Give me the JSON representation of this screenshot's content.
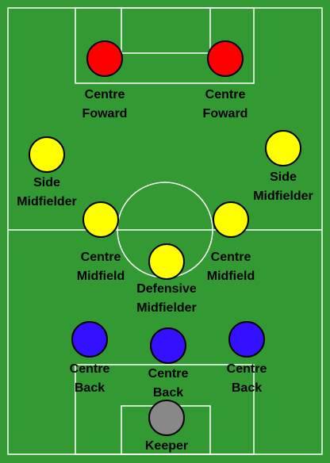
{
  "pitch": {
    "grass_color": "#339933",
    "line_color": "#ffffff",
    "border_color": "#ffffff"
  },
  "colors": {
    "forward": "#ff0000",
    "midfielder": "#ffff00",
    "defender": "#3311ff",
    "keeper": "#888888",
    "outline": "#000000"
  },
  "players": [
    {
      "id": "cf-left",
      "role": "forward",
      "label": [
        "Centre",
        "Foward"
      ]
    },
    {
      "id": "cf-right",
      "role": "forward",
      "label": [
        "Centre",
        "Foward"
      ]
    },
    {
      "id": "sm-left",
      "role": "midfielder",
      "label": [
        "Side",
        "Midfielder"
      ]
    },
    {
      "id": "sm-right",
      "role": "midfielder",
      "label": [
        "Side",
        "Midfielder"
      ]
    },
    {
      "id": "cm-left",
      "role": "midfielder",
      "label": [
        "Centre",
        "Midfield"
      ]
    },
    {
      "id": "cm-right",
      "role": "midfielder",
      "label": [
        "Centre",
        "Midfield"
      ]
    },
    {
      "id": "dm",
      "role": "midfielder",
      "label": [
        "Defensive",
        "Midfielder"
      ]
    },
    {
      "id": "cb-left",
      "role": "defender",
      "label": [
        "Centre",
        "Back"
      ]
    },
    {
      "id": "cb-mid",
      "role": "defender",
      "label": [
        "Centre",
        "Back"
      ]
    },
    {
      "id": "cb-right",
      "role": "defender",
      "label": [
        "Centre",
        "Back"
      ]
    },
    {
      "id": "gk",
      "role": "keeper",
      "label": [
        "Keeper"
      ]
    }
  ]
}
